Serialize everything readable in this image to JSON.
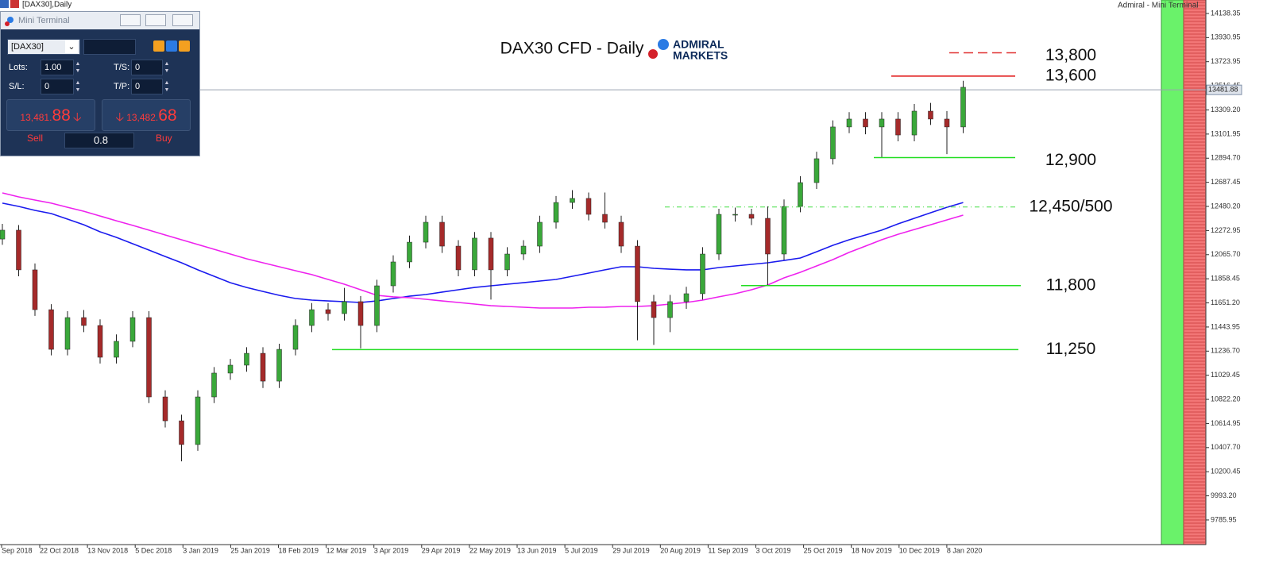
{
  "top_tab": "[DAX30],Daily",
  "window_title": "Admiral - Mini Terminal",
  "mini_terminal": {
    "title": "Mini Terminal",
    "symbol": "[DAX30]",
    "lots_label": "Lots:",
    "lots": "1.00",
    "ts_label": "T/S:",
    "ts": "0",
    "sl_label": "S/L:",
    "sl": "0",
    "tp_label": "T/P:",
    "tp": "0",
    "sell": {
      "main": "13,481.",
      "pips": "88"
    },
    "buy": {
      "main": "13,482.",
      "pips": "68"
    },
    "sell_label": "Sell",
    "spread": "0.8",
    "buy_label": "Buy"
  },
  "chart_data": {
    "type": "candlestick",
    "title": "DAX30 CFD - Daily",
    "logo": [
      "ADMIRAL",
      "MARKETS"
    ],
    "x_labels": [
      "Sep 2018",
      "22 Oct 2018",
      "13 Nov 2018",
      "5 Dec 2018",
      "3 Jan 2019",
      "25 Jan 2019",
      "18 Feb 2019",
      "12 Mar 2019",
      "3 Apr 2019",
      "29 Apr 2019",
      "22 May 2019",
      "13 Jun 2019",
      "5 Jul 2019",
      "29 Jul 2019",
      "20 Aug 2019",
      "11 Sep 2019",
      "3 Oct 2019",
      "25 Oct 2019",
      "18 Nov 2019",
      "10 Dec 2019",
      "8 Jan 2020"
    ],
    "ylim": [
      9581,
      14254
    ],
    "yticks": [
      14138.35,
      13930.95,
      13723.95,
      13516.45,
      {
        "value": 13309.2,
        "label": "13309.20"
      },
      13101.95,
      {
        "value": 12894.7,
        "label": "12894.70"
      },
      12687.45,
      {
        "value": 12480.2,
        "label": "12480.20"
      },
      12272.95,
      {
        "value": 12065.7,
        "label": "12065.70"
      },
      11858.45,
      {
        "value": 11651.2,
        "label": "11651.20"
      },
      11443.95,
      {
        "value": 11236.7,
        "label": "11236.70"
      },
      11029.45,
      {
        "value": 10822.2,
        "label": "10822.20"
      },
      10614.95,
      {
        "value": 10407.7,
        "label": "10407.70"
      },
      10200.45,
      {
        "value": 9993.2,
        "label": "9993.20"
      },
      9785.95
    ],
    "up_color": "#3aa83a",
    "down_color": "#a52a2a",
    "open": [
      12200,
      12276,
      11935,
      11593,
      11252,
      11525,
      11457,
      11184,
      11321,
      11525,
      10843,
      10638,
      10434,
      10843,
      11048,
      11116,
      11218,
      10979,
      11252,
      11457,
      11593,
      11559,
      11662,
      11457,
      11798,
      12003,
      12173,
      12344,
      12139,
      11935,
      12208,
      11935,
      12071,
      12139,
      12344,
      12514,
      12549,
      12412,
      12344,
      12139,
      11662,
      11525,
      11662,
      11730,
      12071,
      12412,
      12412,
      12378,
      12071,
      12480,
      12685,
      12890,
      13163,
      13231,
      13163,
      13231,
      13094,
      13299,
      13231,
      13163
    ],
    "high": [
      12330,
      12320,
      11990,
      11640,
      11580,
      11590,
      11510,
      11380,
      11580,
      11580,
      10900,
      10690,
      10900,
      11100,
      11170,
      11270,
      11270,
      11300,
      11510,
      11650,
      11650,
      11780,
      11710,
      11850,
      12060,
      12230,
      12400,
      12400,
      12190,
      12260,
      12260,
      12130,
      12190,
      12400,
      12570,
      12620,
      12600,
      12600,
      12400,
      12190,
      11720,
      11720,
      11790,
      12130,
      12460,
      12470,
      12460,
      12480,
      12540,
      12740,
      12950,
      13220,
      13290,
      13290,
      13290,
      13290,
      13360,
      13370,
      13300,
      13560
    ],
    "low": [
      12150,
      11880,
      11540,
      11200,
      11200,
      11400,
      11130,
      11130,
      11270,
      10790,
      10580,
      10290,
      10380,
      10790,
      10990,
      11060,
      10920,
      10920,
      11200,
      11400,
      11500,
      11500,
      11260,
      11400,
      11740,
      11950,
      12120,
      12080,
      11880,
      11880,
      11680,
      11880,
      12020,
      12080,
      12290,
      12460,
      12360,
      12290,
      12080,
      11330,
      11290,
      11400,
      11600,
      11680,
      12020,
      12350,
      12320,
      11800,
      12020,
      12430,
      12630,
      12840,
      13110,
      13100,
      12900,
      13040,
      13040,
      13180,
      12930,
      13110
    ],
    "close": [
      12276,
      11935,
      11593,
      11252,
      11525,
      11457,
      11184,
      11321,
      11525,
      10843,
      10638,
      10434,
      10843,
      11048,
      11116,
      11218,
      10979,
      11252,
      11457,
      11593,
      11559,
      11662,
      11457,
      11798,
      12003,
      12173,
      12344,
      12139,
      11935,
      12208,
      11935,
      12071,
      12139,
      12344,
      12514,
      12549,
      12412,
      12344,
      12139,
      11662,
      11525,
      11662,
      11730,
      12071,
      12412,
      12412,
      12378,
      12071,
      12480,
      12685,
      12890,
      13163,
      13231,
      13163,
      13231,
      13094,
      13299,
      13231,
      13163,
      13504
    ],
    "moving_averages": [
      {
        "color": "#1a1aee",
        "values": [
          12508,
          12480,
          12446,
          12419,
          12371,
          12323,
          12262,
          12214,
          12160,
          12105,
          12050,
          11996,
          11935,
          11880,
          11825,
          11784,
          11750,
          11716,
          11689,
          11675,
          11668,
          11662,
          11655,
          11668,
          11689,
          11709,
          11723,
          11744,
          11764,
          11784,
          11798,
          11812,
          11825,
          11839,
          11853,
          11880,
          11907,
          11935,
          11962,
          11962,
          11948,
          11941,
          11935,
          11935,
          11955,
          11969,
          11982,
          11996,
          12016,
          12037,
          12091,
          12146,
          12194,
          12235,
          12276,
          12330,
          12378,
          12426,
          12473,
          12514
        ]
      },
      {
        "color": "#ee22ee",
        "values": [
          12596,
          12562,
          12535,
          12508,
          12473,
          12439,
          12398,
          12357,
          12317,
          12276,
          12235,
          12194,
          12153,
          12112,
          12071,
          12030,
          11996,
          11962,
          11928,
          11894,
          11853,
          11812,
          11764,
          11716,
          11703,
          11696,
          11682,
          11668,
          11655,
          11641,
          11627,
          11621,
          11614,
          11607,
          11607,
          11607,
          11614,
          11614,
          11621,
          11621,
          11627,
          11641,
          11655,
          11675,
          11703,
          11730,
          11764,
          11805,
          11866,
          11914,
          11969,
          12023,
          12085,
          12139,
          12194,
          12241,
          12282,
          12323,
          12364,
          12405
        ]
      }
    ],
    "last_price": 13481.88,
    "levels": [
      {
        "label": "13,800",
        "value": 13800,
        "color": "#e03030",
        "style": "dashed"
      },
      {
        "label": "13,600",
        "value": 13600,
        "color": "#e01010",
        "style": "solid"
      },
      {
        "label": "12,900",
        "value": 12900,
        "color": "#22dd22",
        "style": "solid"
      },
      {
        "label": "12,450/500",
        "value": [
          12450,
          12500
        ],
        "color": "#44dd44",
        "style": "dashdot"
      },
      {
        "label": "11,800",
        "value": 11800,
        "color": "#22dd22",
        "style": "solid"
      },
      {
        "label": "11,250",
        "value": 11250,
        "color": "#22dd22",
        "style": "solid"
      }
    ]
  }
}
